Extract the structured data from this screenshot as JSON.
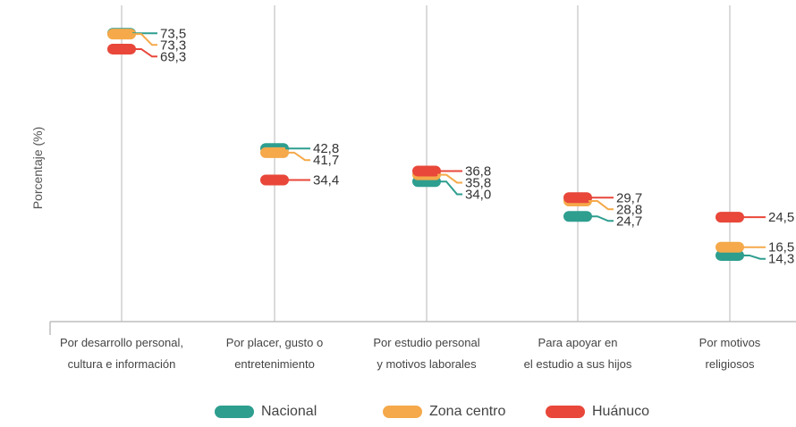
{
  "chart_data": {
    "type": "dot-range",
    "ylabel": "Porcentaje (%)",
    "categories": [
      [
        "Por desarrollo personal,",
        "cultura e información"
      ],
      [
        "Por placer, gusto o",
        "entretenimiento"
      ],
      [
        "Por estudio personal",
        "y motivos laborales"
      ],
      [
        "Para apoyar en",
        "el estudio a sus hijos"
      ],
      [
        "Por motivos",
        "religiosos"
      ]
    ],
    "series": [
      {
        "name": "Nacional",
        "color": "#2E9E8F",
        "values": [
          73.5,
          42.8,
          34.0,
          24.7,
          14.3
        ],
        "labels": [
          "73,5",
          "42,8",
          "34,0",
          "24,7",
          "14,3"
        ]
      },
      {
        "name": "Zona centro",
        "color": "#F5A94A",
        "values": [
          73.3,
          41.7,
          35.8,
          28.8,
          16.5
        ],
        "labels": [
          "73,3",
          "41,7",
          "35,8",
          "28,8",
          "16,5"
        ]
      },
      {
        "name": "Huánuco",
        "color": "#E8473A",
        "values": [
          69.3,
          34.4,
          36.8,
          29.7,
          24.5
        ],
        "labels": [
          "69,3",
          "34,4",
          "36,8",
          "29,7",
          "24,5"
        ]
      }
    ]
  },
  "legend": {
    "items": [
      {
        "label": "Nacional",
        "color": "#2E9E8F"
      },
      {
        "label": "Zona centro",
        "color": "#F5A94A"
      },
      {
        "label": "Huánuco",
        "color": "#E8473A"
      }
    ]
  }
}
